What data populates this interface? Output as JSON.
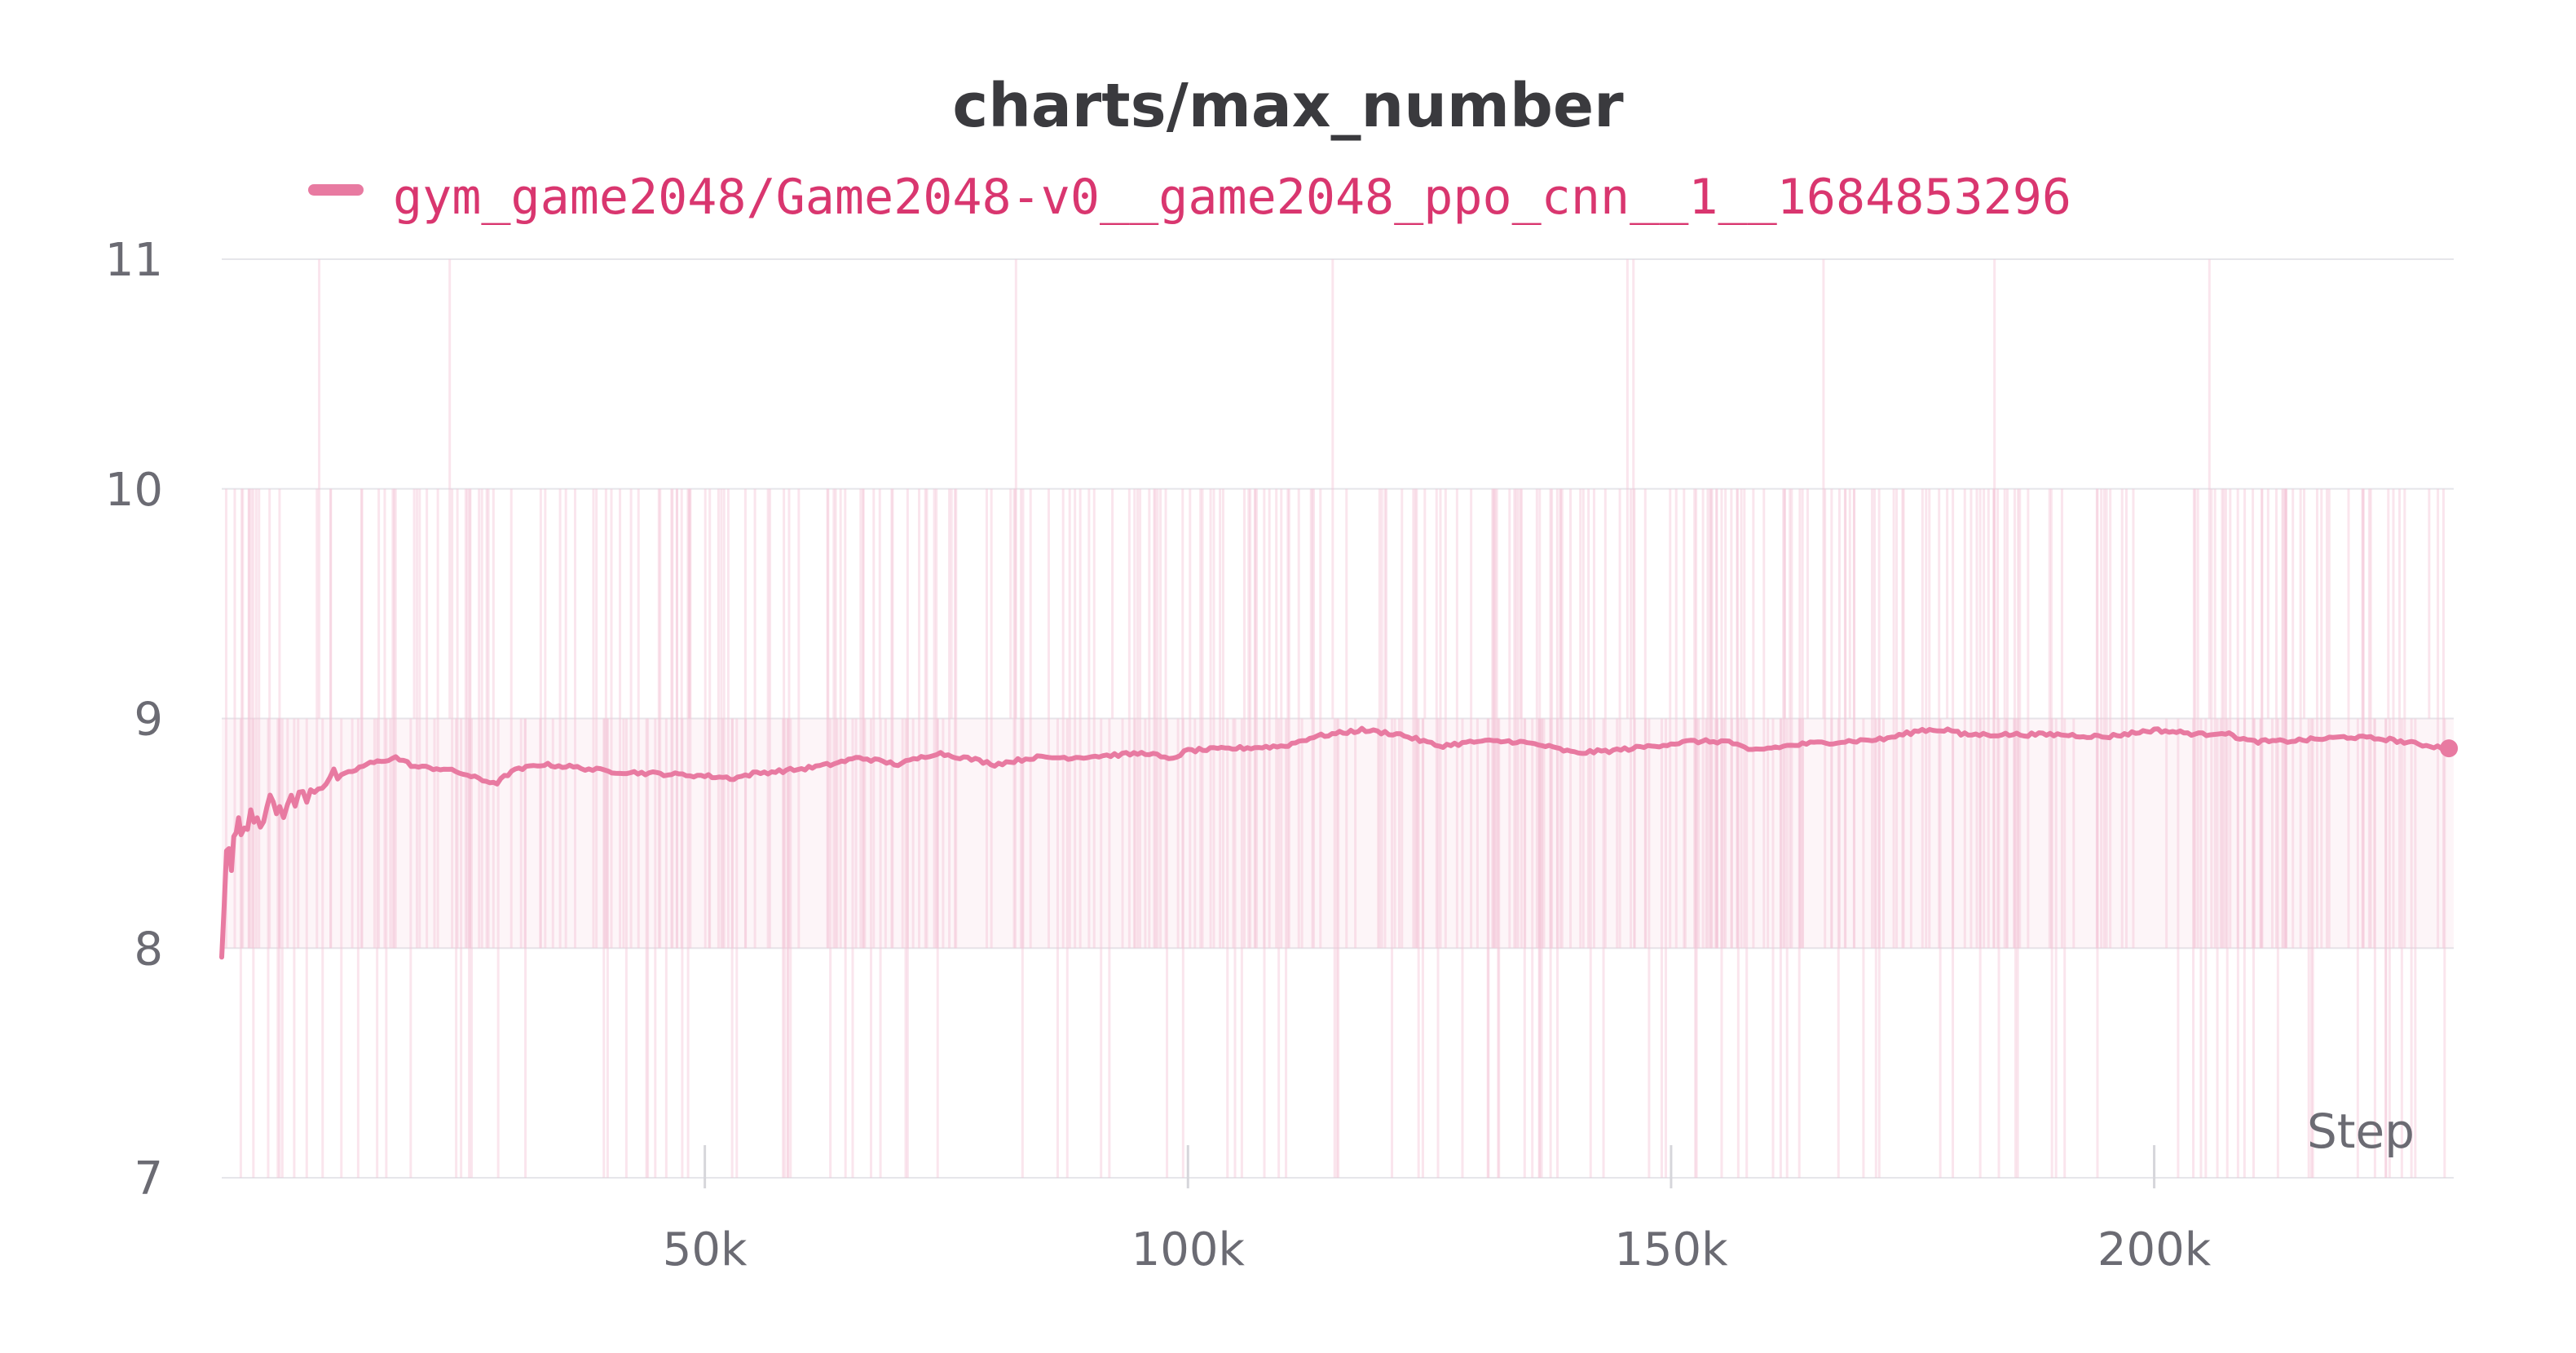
{
  "colors": {
    "series": "#e87aa1",
    "legend_text": "#d9366f",
    "raw": "#f5c6d6",
    "grid": "#e6e6ea",
    "tick_text": "#6b6b73",
    "title": "#3a3a3e"
  },
  "chart_data": {
    "type": "line",
    "title": "charts/max_number",
    "xlabel": "Step",
    "ylabel": "",
    "xlim": [
      0,
      231000
    ],
    "ylim": [
      7,
      11
    ],
    "y_ticks": [
      "7",
      "8",
      "9",
      "10",
      "11"
    ],
    "y_tick_values": [
      7,
      8,
      9,
      10,
      11
    ],
    "x_ticks": [
      "50k",
      "100k",
      "150k",
      "200k"
    ],
    "x_tick_values": [
      50000,
      100000,
      150000,
      200000
    ],
    "grid": true,
    "legend_position": "top",
    "series": [
      {
        "name": "gym_game2048/Game2048-v0__game2048_ppo_cnn__1__1684853296",
        "raw_range": [
          7,
          11
        ],
        "x": [
          0,
          500,
          1000,
          1500,
          2000,
          3000,
          4000,
          5000,
          6000,
          8000,
          10000,
          12000,
          15000,
          18000,
          20000,
          23000,
          25000,
          27000,
          28500,
          30000,
          33000,
          36000,
          40000,
          45000,
          50000,
          53000,
          55000,
          60000,
          63000,
          66000,
          70000,
          74000,
          78000,
          80000,
          84000,
          88000,
          92000,
          96000,
          98000,
          100000,
          105000,
          110000,
          113000,
          118000,
          122000,
          126000,
          130000,
          134000,
          137000,
          140000,
          144000,
          148000,
          152000,
          156000,
          158000,
          160000,
          164000,
          168000,
          172000,
          176000,
          179000,
          180000,
          185000,
          190000,
          195000,
          200000,
          205000,
          207000,
          210000,
          213000,
          217000,
          220000,
          224000,
          227000,
          230500
        ],
        "y": [
          8.0,
          8.45,
          8.35,
          8.55,
          8.5,
          8.6,
          8.57,
          8.62,
          8.6,
          8.65,
          8.72,
          8.74,
          8.8,
          8.83,
          8.79,
          8.78,
          8.76,
          8.73,
          8.72,
          8.77,
          8.8,
          8.79,
          8.77,
          8.76,
          8.75,
          8.74,
          8.76,
          8.78,
          8.8,
          8.83,
          8.8,
          8.85,
          8.82,
          8.8,
          8.83,
          8.83,
          8.84,
          8.85,
          8.82,
          8.86,
          8.87,
          8.88,
          8.92,
          8.95,
          8.93,
          8.88,
          8.9,
          8.9,
          8.88,
          8.85,
          8.86,
          8.88,
          8.9,
          8.9,
          8.86,
          8.87,
          8.89,
          8.9,
          8.91,
          8.95,
          8.95,
          8.93,
          8.93,
          8.93,
          8.92,
          8.95,
          8.93,
          8.94,
          8.9,
          8.9,
          8.91,
          8.92,
          8.91,
          8.89,
          8.87
        ]
      }
    ]
  }
}
